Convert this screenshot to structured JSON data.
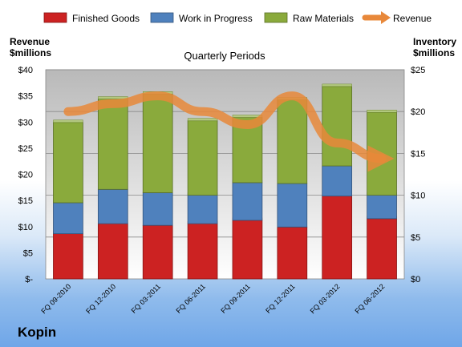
{
  "chart_data": {
    "type": "bar",
    "company": "Kopin",
    "title": "Quarterly Periods",
    "left_axis_label": [
      "Revenue",
      "$millions"
    ],
    "right_axis_label": [
      "Inventory",
      "$millions"
    ],
    "categories": [
      "FQ 09-2010",
      "FQ 12-2010",
      "FQ 03-2011",
      "FQ 06-2011",
      "FQ 09-2011",
      "FQ 12-2011",
      "FQ 03-2012",
      "FQ 06-2012"
    ],
    "left_axis": {
      "ylim": [
        0,
        40
      ],
      "tick_labels": [
        "$-",
        "$5",
        "$10",
        "$15",
        "$20",
        "$25",
        "$30",
        "$35",
        "$40"
      ]
    },
    "right_axis": {
      "ylim": [
        0,
        25
      ],
      "tick_labels": [
        "$0",
        "$5",
        "$10",
        "$15",
        "$20",
        "$25"
      ]
    },
    "grid": true,
    "legend_position": "top",
    "series": [
      {
        "name": "Finished Goods",
        "kind": "stacked-bar",
        "axis": "right",
        "color": "#cc2222",
        "values": [
          5.4,
          6.6,
          6.4,
          6.6,
          7.0,
          6.2,
          9.9,
          7.2
        ]
      },
      {
        "name": "Work in Progress",
        "kind": "stacked-bar",
        "axis": "right",
        "color": "#4f81bd",
        "values": [
          3.7,
          4.1,
          3.9,
          3.4,
          4.5,
          5.2,
          3.6,
          2.8
        ]
      },
      {
        "name": "Raw Materials",
        "kind": "stacked-bar",
        "axis": "right",
        "color": "#8aaa3c",
        "values": [
          9.6,
          10.8,
          11.8,
          8.9,
          7.8,
          10.0,
          9.5,
          9.9
        ]
      },
      {
        "name": "Revenue",
        "kind": "line",
        "axis": "left",
        "color": "#e8883a",
        "values": [
          32.0,
          33.5,
          35.0,
          32.0,
          29.5,
          35.0,
          26.0,
          23.0
        ]
      }
    ]
  }
}
